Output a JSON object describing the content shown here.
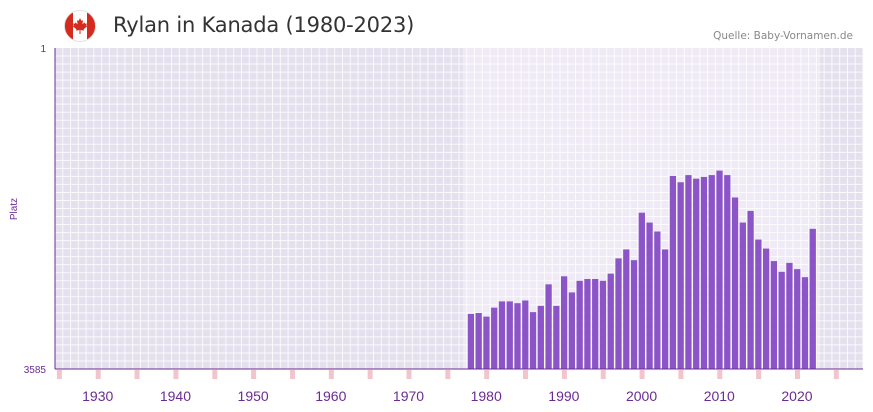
{
  "header": {
    "title": "Rylan in Kanada (1980-2023)",
    "source": "Quelle: Baby-Vornamen.de",
    "flag_icon": "canada-flag-icon"
  },
  "colors": {
    "bar": "#8b55c8",
    "axis": "#6a2c91",
    "tick_label": "#6a2c91",
    "plot_bg_outer": "#e4e0ed",
    "plot_bg_inner": "#efeaf6",
    "grid": "#ffffff",
    "marker_major": "#d9606e",
    "marker_minor": "#f2c4cc",
    "flag_red": "#d52b1e"
  },
  "chart_data": {
    "type": "bar",
    "title": "Rylan in Kanada (1980-2023)",
    "xlabel": "",
    "ylabel": "Platz",
    "y_inverted": true,
    "ylim": [
      1,
      3585
    ],
    "y_tick_labels": [
      "1",
      "3585"
    ],
    "xlim": [
      1925,
      2029
    ],
    "x_tick_labels": [
      "1930",
      "1940",
      "1950",
      "1960",
      "1970",
      "1980",
      "1990",
      "2000",
      "2010",
      "2020"
    ],
    "x": [
      1978,
      1979,
      1980,
      1981,
      1982,
      1983,
      1984,
      1985,
      1986,
      1987,
      1988,
      1989,
      1990,
      1991,
      1992,
      1993,
      1994,
      1995,
      1996,
      1997,
      1998,
      1999,
      2000,
      2001,
      2002,
      2003,
      2004,
      2005,
      2006,
      2007,
      2008,
      2009,
      2010,
      2011,
      2012,
      2013,
      2014,
      2015,
      2016,
      2017,
      2018,
      2019,
      2020,
      2021,
      2022
    ],
    "values": [
      2970,
      2960,
      3000,
      2900,
      2830,
      2830,
      2850,
      2820,
      2950,
      2880,
      2640,
      2880,
      2550,
      2730,
      2600,
      2580,
      2580,
      2600,
      2520,
      2350,
      2250,
      2370,
      1840,
      1950,
      2050,
      2250,
      1430,
      1500,
      1420,
      1460,
      1440,
      1420,
      1370,
      1420,
      1670,
      1950,
      1820,
      2140,
      2240,
      2380,
      2500,
      2400,
      2470,
      2560,
      2020
    ]
  }
}
